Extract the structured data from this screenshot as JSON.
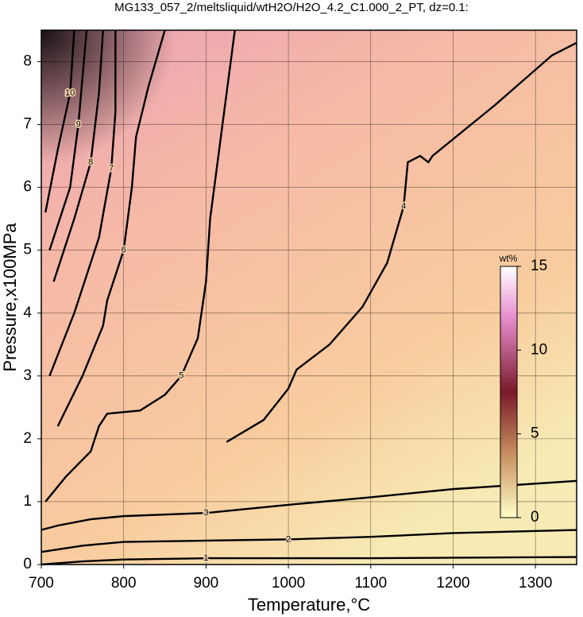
{
  "chart_data": {
    "type": "contour",
    "title": "MG133_057_2/meltsliquid/wtH2O/H2O_4.2_C1.000_2_PT, dz=0.1:",
    "x_label": "Temperature,°C",
    "y_label": "Pressure,x100MPa",
    "xlim": [
      700,
      1350
    ],
    "ylim": [
      0,
      8.5
    ],
    "xticks": [
      700,
      800,
      900,
      1000,
      1100,
      1200,
      1300
    ],
    "yticks": [
      0,
      1,
      2,
      3,
      4,
      5,
      6,
      7,
      8
    ],
    "grid": true,
    "colorbar": {
      "label": "wt%",
      "lim": [
        0,
        15
      ],
      "ticks": [
        0,
        5,
        10,
        15
      ]
    },
    "contours": [
      {
        "level": 1,
        "x": [
          700,
          750,
          800,
          900,
          1100,
          1350
        ],
        "y": [
          0.0,
          0.05,
          0.08,
          0.1,
          0.1,
          0.12
        ]
      },
      {
        "level": 2,
        "x": [
          700,
          750,
          800,
          900,
          1000,
          1100,
          1200,
          1350
        ],
        "y": [
          0.2,
          0.3,
          0.36,
          0.38,
          0.4,
          0.44,
          0.5,
          0.55
        ]
      },
      {
        "level": 3,
        "x": [
          700,
          720,
          760,
          800,
          900,
          1000,
          1100,
          1200,
          1350
        ],
        "y": [
          0.55,
          0.62,
          0.72,
          0.77,
          0.82,
          0.95,
          1.07,
          1.2,
          1.33
        ]
      },
      {
        "level": 4,
        "x": [
          925,
          970,
          1000,
          1010,
          1050,
          1090,
          1120,
          1140,
          1145,
          1160,
          1170,
          1175,
          1250,
          1320,
          1350
        ],
        "y": [
          1.95,
          2.3,
          2.8,
          3.1,
          3.5,
          4.1,
          4.8,
          5.7,
          6.4,
          6.5,
          6.4,
          6.5,
          7.3,
          8.1,
          8.3
        ]
      },
      {
        "level": 5,
        "x": [
          705,
          730,
          760,
          770,
          780,
          820,
          850,
          870,
          890,
          900,
          905,
          910,
          920,
          935
        ],
        "y": [
          1.0,
          1.4,
          1.8,
          2.2,
          2.4,
          2.45,
          2.7,
          3.0,
          3.6,
          4.5,
          5.5,
          6.0,
          7.0,
          8.5
        ]
      },
      {
        "level": 6,
        "x": [
          720,
          750,
          775,
          780,
          800,
          810,
          815,
          830,
          850
        ],
        "y": [
          2.2,
          3.0,
          3.8,
          4.2,
          5.0,
          6.0,
          6.8,
          7.6,
          8.5
        ]
      },
      {
        "level": 7,
        "x": [
          710,
          740,
          770,
          785,
          790,
          790
        ],
        "y": [
          3.0,
          4.0,
          5.2,
          6.3,
          7.2,
          8.5
        ]
      },
      {
        "level": 8,
        "x": [
          715,
          740,
          760,
          770,
          775
        ],
        "y": [
          4.5,
          5.5,
          6.4,
          7.5,
          8.5
        ]
      },
      {
        "level": 9,
        "x": [
          710,
          735,
          745,
          755
        ],
        "y": [
          5.0,
          6.0,
          7.0,
          8.5
        ]
      },
      {
        "level": 10,
        "x": [
          705,
          720,
          735,
          740
        ],
        "y": [
          5.6,
          6.6,
          7.5,
          8.5
        ]
      }
    ]
  }
}
